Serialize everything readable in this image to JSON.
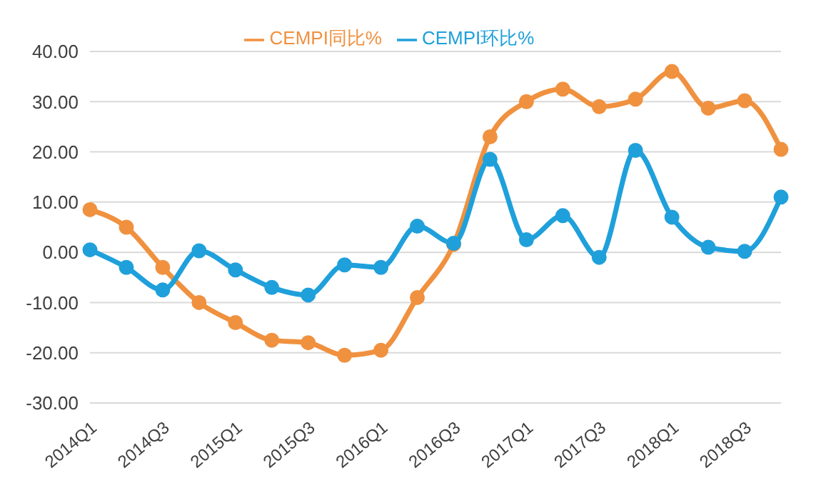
{
  "chart_data": {
    "type": "line",
    "categories": [
      "2014Q1",
      null,
      "2014Q3",
      null,
      "2015Q1",
      null,
      "2015Q3",
      null,
      "2016Q1",
      null,
      "2016Q3",
      null,
      "2017Q1",
      null,
      "2017Q3",
      null,
      "2018Q1",
      null,
      "2018Q3",
      null
    ],
    "series": [
      {
        "name": "CEMPI环比%",
        "color": "#1fa0db",
        "values": [
          0.5,
          -3,
          -7.5,
          0.3,
          -3.5,
          -7,
          -8.5,
          -2.5,
          -3,
          5.2,
          1.8,
          18.5,
          2.5,
          7.3,
          -1,
          20.3,
          7,
          1,
          0.2,
          11
        ]
      },
      {
        "name": "CEMPI同比%",
        "color": "#f0913f",
        "values": [
          8.5,
          5,
          -3,
          -10,
          -14,
          -17.5,
          -18,
          -20.5,
          -19.5,
          -9,
          1.6,
          23,
          30,
          32.5,
          29,
          30.5,
          36,
          28.7,
          30.2,
          20.5
        ]
      }
    ],
    "ylim": [
      -30,
      40
    ],
    "yticks": [
      {
        "value": -30,
        "label": "-30.00"
      },
      {
        "value": -20,
        "label": "-20.00"
      },
      {
        "value": -10,
        "label": "-10.00"
      },
      {
        "value": 0,
        "label": "0.00"
      },
      {
        "value": 10,
        "label": "10.00"
      },
      {
        "value": 20,
        "label": "20.00"
      },
      {
        "value": 30,
        "label": "30.00"
      },
      {
        "value": 40,
        "label": "40.00"
      }
    ],
    "grid": "y",
    "legend": "top",
    "marker": "circle",
    "line_style": "solid"
  }
}
